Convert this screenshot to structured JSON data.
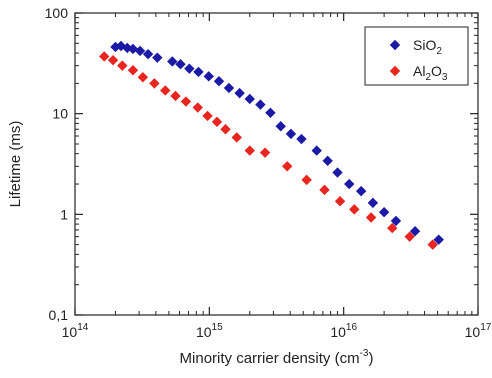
{
  "chart_data": {
    "type": "scatter",
    "xscale": "log",
    "yscale": "log",
    "xlim": [
      100000000000000.0,
      1e+17
    ],
    "ylim": [
      0.1,
      100
    ],
    "x_ticks": [
      {
        "value": 100000000000000.0,
        "base": "10",
        "exp": "14"
      },
      {
        "value": 1000000000000000.0,
        "base": "10",
        "exp": "15"
      },
      {
        "value": 1e+16,
        "base": "10",
        "exp": "16"
      },
      {
        "value": 1e+17,
        "base": "10",
        "exp": "17"
      }
    ],
    "y_ticks": [
      {
        "value": 0.1,
        "label": "0,1"
      },
      {
        "value": 1,
        "label": "1"
      },
      {
        "value": 10,
        "label": "10"
      },
      {
        "value": 100,
        "label": "100"
      }
    ],
    "xlabel": {
      "main": "Minority carrier density (cm",
      "sup": "-3",
      "tail": ")"
    },
    "ylabel": "Lifetime (ms)",
    "legend": {
      "position": "top-right"
    },
    "grid": false,
    "series": [
      {
        "name": "SiO2",
        "label_parts": [
          {
            "t": "SiO",
            "sub": false
          },
          {
            "t": "2",
            "sub": true
          }
        ],
        "color": "#1a1aa6",
        "marker": "diamond",
        "points": [
          [
            200000000000000.0,
            46
          ],
          [
            220000000000000.0,
            47
          ],
          [
            245000000000000.0,
            45
          ],
          [
            270000000000000.0,
            44
          ],
          [
            305000000000000.0,
            42
          ],
          [
            350000000000000.0,
            39
          ],
          [
            410000000000000.0,
            36
          ],
          [
            530000000000000.0,
            33
          ],
          [
            610000000000000.0,
            31
          ],
          [
            710000000000000.0,
            28
          ],
          [
            830000000000000.0,
            26
          ],
          [
            990000000000000.0,
            23.5
          ],
          [
            1180000000000000.0,
            21
          ],
          [
            1400000000000000.0,
            18
          ],
          [
            1680000000000000.0,
            16
          ],
          [
            2000000000000000.0,
            14
          ],
          [
            2400000000000000.0,
            12.3
          ],
          [
            2850000000000000.0,
            10.2
          ],
          [
            3400000000000000.0,
            7.5
          ],
          [
            4050000000000000.0,
            6.3
          ],
          [
            4850000000000000.0,
            5.6
          ],
          [
            6300000000000000.0,
            4.3
          ],
          [
            7600000000000000.0,
            3.4
          ],
          [
            9000000000000000.0,
            2.6
          ],
          [
            1.1e+16,
            2.0
          ],
          [
            1.35e+16,
            1.7
          ],
          [
            1.65e+16,
            1.3
          ],
          [
            2e+16,
            1.05
          ],
          [
            2.45e+16,
            0.86
          ],
          [
            3.4e+16,
            0.68
          ],
          [
            5.1e+16,
            0.56
          ]
        ]
      },
      {
        "name": "Al2O3",
        "label_parts": [
          {
            "t": "Al",
            "sub": false
          },
          {
            "t": "2",
            "sub": true
          },
          {
            "t": "O",
            "sub": false
          },
          {
            "t": "3",
            "sub": true
          }
        ],
        "color": "#e8251e",
        "marker": "diamond",
        "points": [
          [
            165000000000000.0,
            37
          ],
          [
            192000000000000.0,
            34
          ],
          [
            225000000000000.0,
            30
          ],
          [
            270000000000000.0,
            27
          ],
          [
            320000000000000.0,
            23
          ],
          [
            390000000000000.0,
            20
          ],
          [
            470000000000000.0,
            17
          ],
          [
            560000000000000.0,
            15
          ],
          [
            670000000000000.0,
            13.2
          ],
          [
            820000000000000.0,
            11.5
          ],
          [
            970000000000000.0,
            9.5
          ],
          [
            1140000000000000.0,
            8.3
          ],
          [
            1320000000000000.0,
            7
          ],
          [
            1600000000000000.0,
            5.8
          ],
          [
            2000000000000000.0,
            4.3
          ],
          [
            2600000000000000.0,
            4.1
          ],
          [
            3800000000000000.0,
            3.0
          ],
          [
            5300000000000000.0,
            2.2
          ],
          [
            7200000000000000.0,
            1.75
          ],
          [
            9400000000000000.0,
            1.35
          ],
          [
            1.2e+16,
            1.12
          ],
          [
            1.6e+16,
            0.93
          ],
          [
            2.3e+16,
            0.73
          ],
          [
            3.1e+16,
            0.6
          ],
          [
            4.6e+16,
            0.5
          ]
        ]
      }
    ]
  }
}
